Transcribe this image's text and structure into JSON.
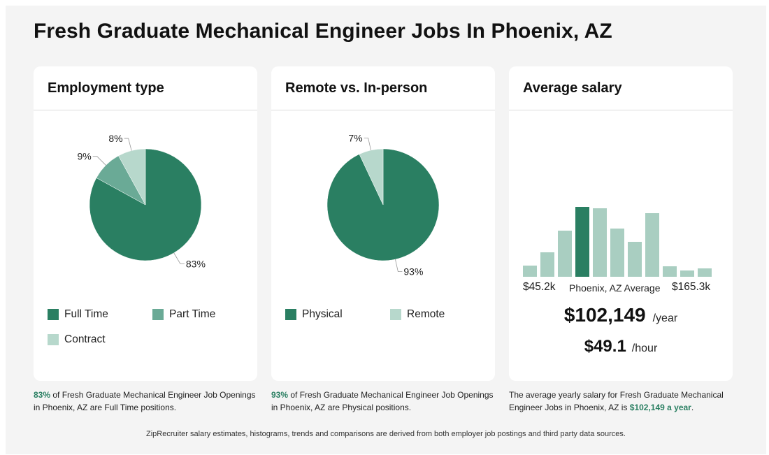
{
  "page_title": "Fresh Graduate Mechanical Engineer Jobs In Phoenix, AZ",
  "colors": {
    "dark": "#2a7f62",
    "medium": "#6aaa96",
    "light": "#b7d8cc",
    "bg": "#f4f4f4"
  },
  "employment": {
    "title": "Employment type",
    "legend": [
      {
        "label": "Full Time",
        "color": "#2a7f62"
      },
      {
        "label": "Part Time",
        "color": "#6aaa96"
      },
      {
        "label": "Contract",
        "color": "#b7d8cc"
      }
    ],
    "caption_pct": "83%",
    "caption_text": " of Fresh Graduate Mechanical Engineer Job Openings in Phoenix, AZ are Full Time positions."
  },
  "remote": {
    "title": "Remote vs. In-person",
    "legend": [
      {
        "label": "Physical",
        "color": "#2a7f62"
      },
      {
        "label": "Remote",
        "color": "#b7d8cc"
      }
    ],
    "caption_pct": "93%",
    "caption_text": " of Fresh Graduate Mechanical Engineer Job Openings in Phoenix, AZ are Physical positions."
  },
  "salary": {
    "title": "Average salary",
    "min_label": "$45.2k",
    "mid_label": "Phoenix, AZ Average",
    "max_label": "$165.3k",
    "yearly_value": "$102,149",
    "yearly_unit": "/year",
    "hourly_value": "$49.1",
    "hourly_unit": "/hour",
    "caption_text": "The average yearly salary for Fresh Graduate Mechanical Engineer Jobs in Phoenix, AZ is ",
    "caption_hl": "$102,149 a year",
    "caption_end": "."
  },
  "footer": "ZipRecruiter salary estimates, histograms, trends and comparisons are derived from both employer job postings and third party data sources.",
  "chart_data": [
    {
      "type": "pie",
      "title": "Employment type",
      "categories": [
        "Full Time",
        "Part Time",
        "Contract"
      ],
      "values": [
        83,
        9,
        8
      ],
      "labels": [
        "83%",
        "9%",
        "8%"
      ],
      "colors": [
        "#2a7f62",
        "#6aaa96",
        "#b7d8cc"
      ]
    },
    {
      "type": "pie",
      "title": "Remote vs. In-person",
      "categories": [
        "Physical",
        "Remote"
      ],
      "values": [
        93,
        7
      ],
      "labels": [
        "93%",
        "7%"
      ],
      "colors": [
        "#2a7f62",
        "#b7d8cc"
      ]
    },
    {
      "type": "bar",
      "title": "Average salary",
      "x_range": [
        "$45.2k",
        "$165.3k"
      ],
      "values": [
        16,
        35,
        66,
        100,
        98,
        69,
        50,
        91,
        15,
        9,
        12
      ],
      "highlight_index": 3,
      "colors": {
        "normal": "#a9cec1",
        "highlight": "#2a7f62"
      }
    }
  ]
}
